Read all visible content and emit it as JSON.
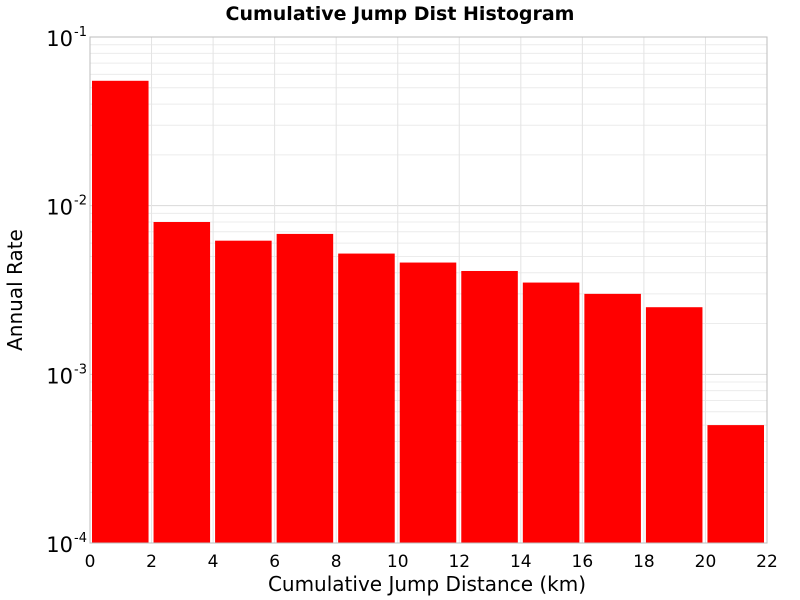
{
  "chart_data": {
    "type": "bar",
    "title": "Cumulative Jump Dist Histogram",
    "xlabel": "Cumulative Jump Distance (km)",
    "ylabel": "Annual Rate",
    "xlim": [
      0,
      22
    ],
    "ylim": [
      0.0001,
      0.1
    ],
    "yscale": "log",
    "grid": true,
    "bar_color": "#ff0000",
    "xticks": [
      "0",
      "2",
      "4",
      "6",
      "8",
      "10",
      "12",
      "14",
      "16",
      "18",
      "20",
      "22"
    ],
    "yticks": [
      {
        "base": "10",
        "exp": "-4"
      },
      {
        "base": "10",
        "exp": "-3"
      },
      {
        "base": "10",
        "exp": "-2"
      },
      {
        "base": "10",
        "exp": "-1"
      }
    ],
    "bins": [
      {
        "x0": 0,
        "x1": 2,
        "value": 0.055
      },
      {
        "x0": 2,
        "x1": 4,
        "value": 0.008
      },
      {
        "x0": 4,
        "x1": 6,
        "value": 0.0062
      },
      {
        "x0": 6,
        "x1": 8,
        "value": 0.0068
      },
      {
        "x0": 8,
        "x1": 10,
        "value": 0.0052
      },
      {
        "x0": 10,
        "x1": 12,
        "value": 0.0046
      },
      {
        "x0": 12,
        "x1": 14,
        "value": 0.0041
      },
      {
        "x0": 14,
        "x1": 16,
        "value": 0.0035
      },
      {
        "x0": 16,
        "x1": 18,
        "value": 0.003
      },
      {
        "x0": 18,
        "x1": 20,
        "value": 0.0025
      },
      {
        "x0": 20,
        "x1": 22,
        "value": 0.0005
      }
    ]
  }
}
